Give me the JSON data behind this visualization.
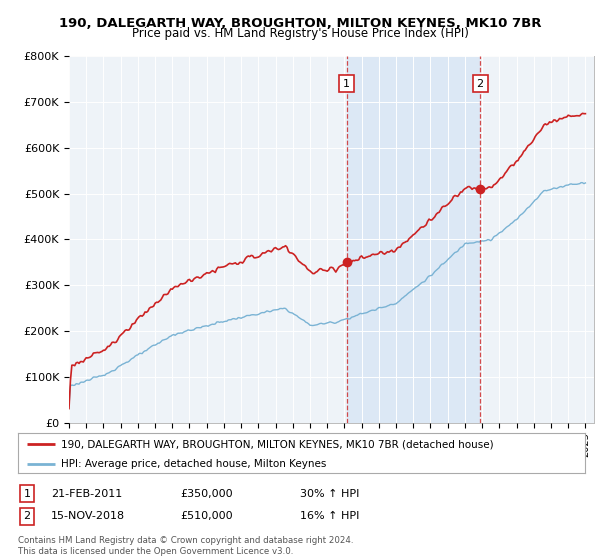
{
  "title1": "190, DALEGARTH WAY, BROUGHTON, MILTON KEYNES, MK10 7BR",
  "title2": "Price paid vs. HM Land Registry's House Price Index (HPI)",
  "ylim": [
    0,
    800000
  ],
  "yticks": [
    0,
    100000,
    200000,
    300000,
    400000,
    500000,
    600000,
    700000,
    800000
  ],
  "ytick_labels": [
    "£0",
    "£100K",
    "£200K",
    "£300K",
    "£400K",
    "£500K",
    "£600K",
    "£700K",
    "£800K"
  ],
  "hpi_color": "#7ab3d4",
  "price_color": "#cc2222",
  "shade_color": "#dce8f5",
  "sale1_date": 2011.13,
  "sale1_price": 350000,
  "sale2_date": 2018.88,
  "sale2_price": 510000,
  "legend1": "190, DALEGARTH WAY, BROUGHTON, MILTON KEYNES, MK10 7BR (detached house)",
  "legend2": "HPI: Average price, detached house, Milton Keynes",
  "footnote": "Contains HM Land Registry data © Crown copyright and database right 2024.\nThis data is licensed under the Open Government Licence v3.0.",
  "table_row1": [
    "1",
    "21-FEB-2011",
    "£350,000",
    "30% ↑ HPI"
  ],
  "table_row2": [
    "2",
    "15-NOV-2018",
    "£510,000",
    "16% ↑ HPI"
  ],
  "xstart": 1995,
  "xend": 2025
}
